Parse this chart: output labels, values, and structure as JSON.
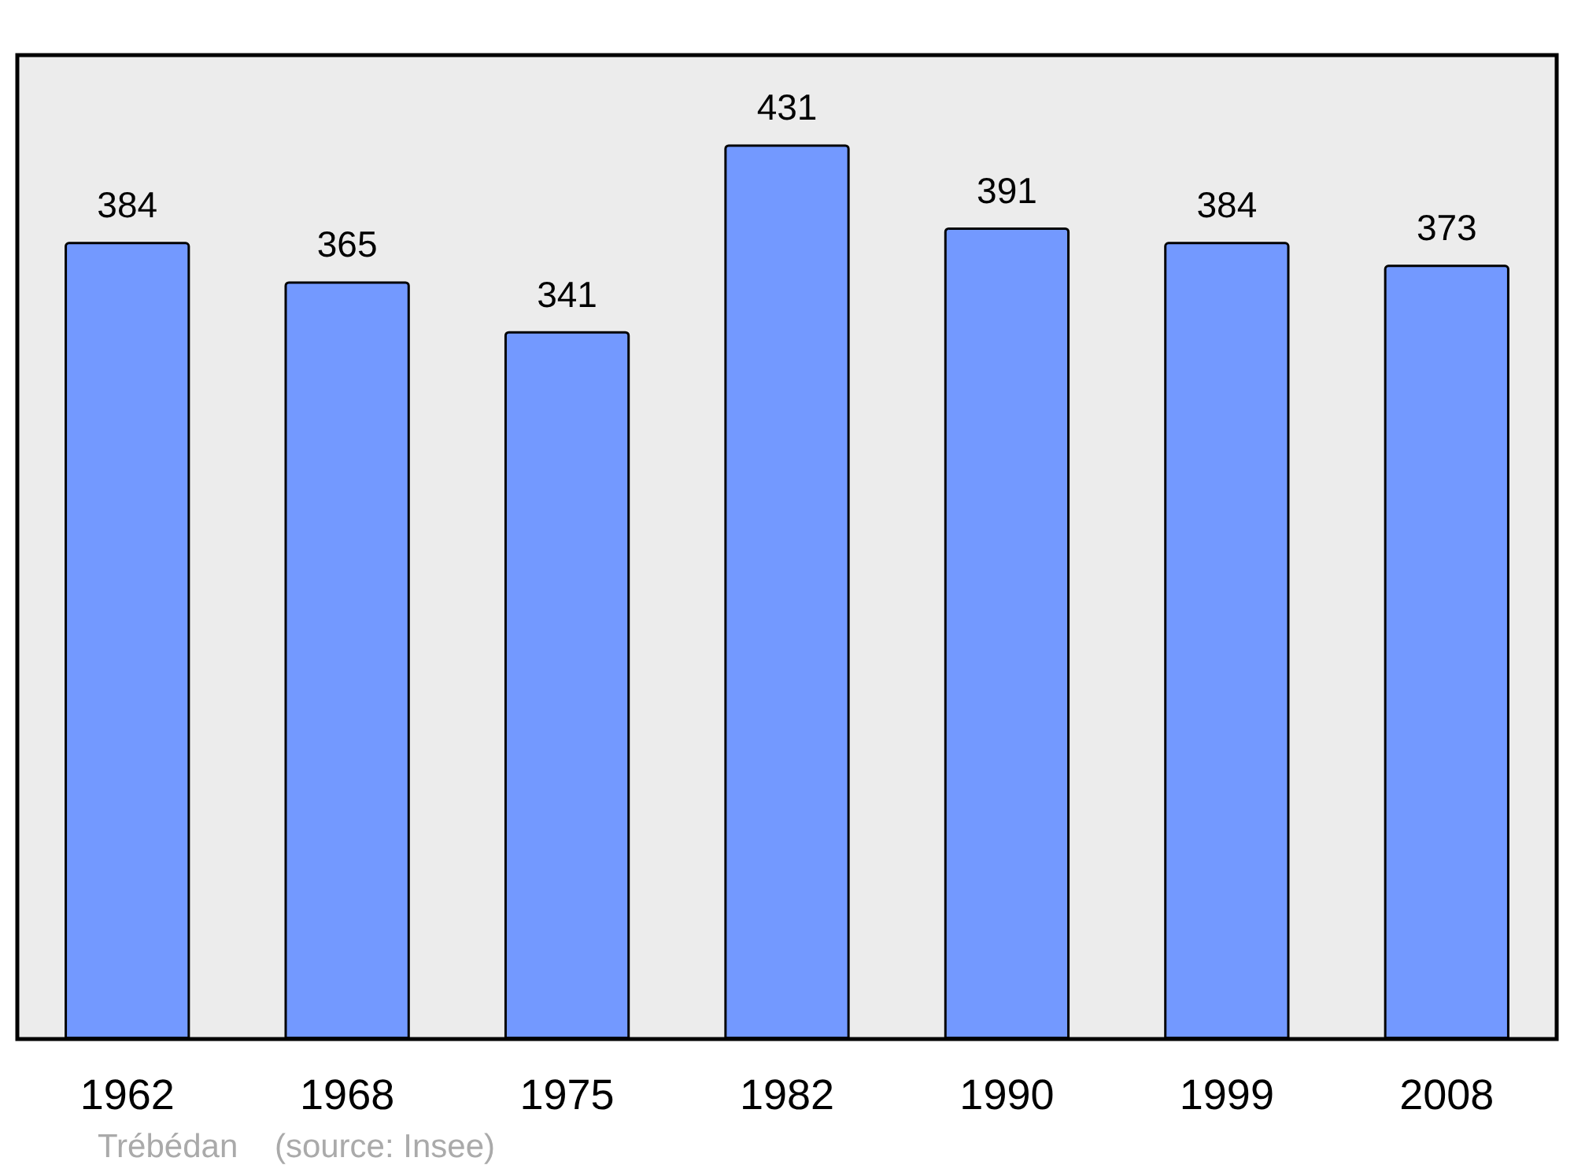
{
  "chart_data": {
    "type": "bar",
    "categories": [
      "1962",
      "1968",
      "1975",
      "1982",
      "1990",
      "1999",
      "2008"
    ],
    "values": [
      384,
      365,
      341,
      431,
      391,
      384,
      373
    ],
    "color": "#7399ff",
    "ylim": [
      0,
      474
    ],
    "tick_labels": "x",
    "data_labels": true,
    "grid": false,
    "annotations": [
      "Trébédan    (source: Insee)"
    ]
  }
}
